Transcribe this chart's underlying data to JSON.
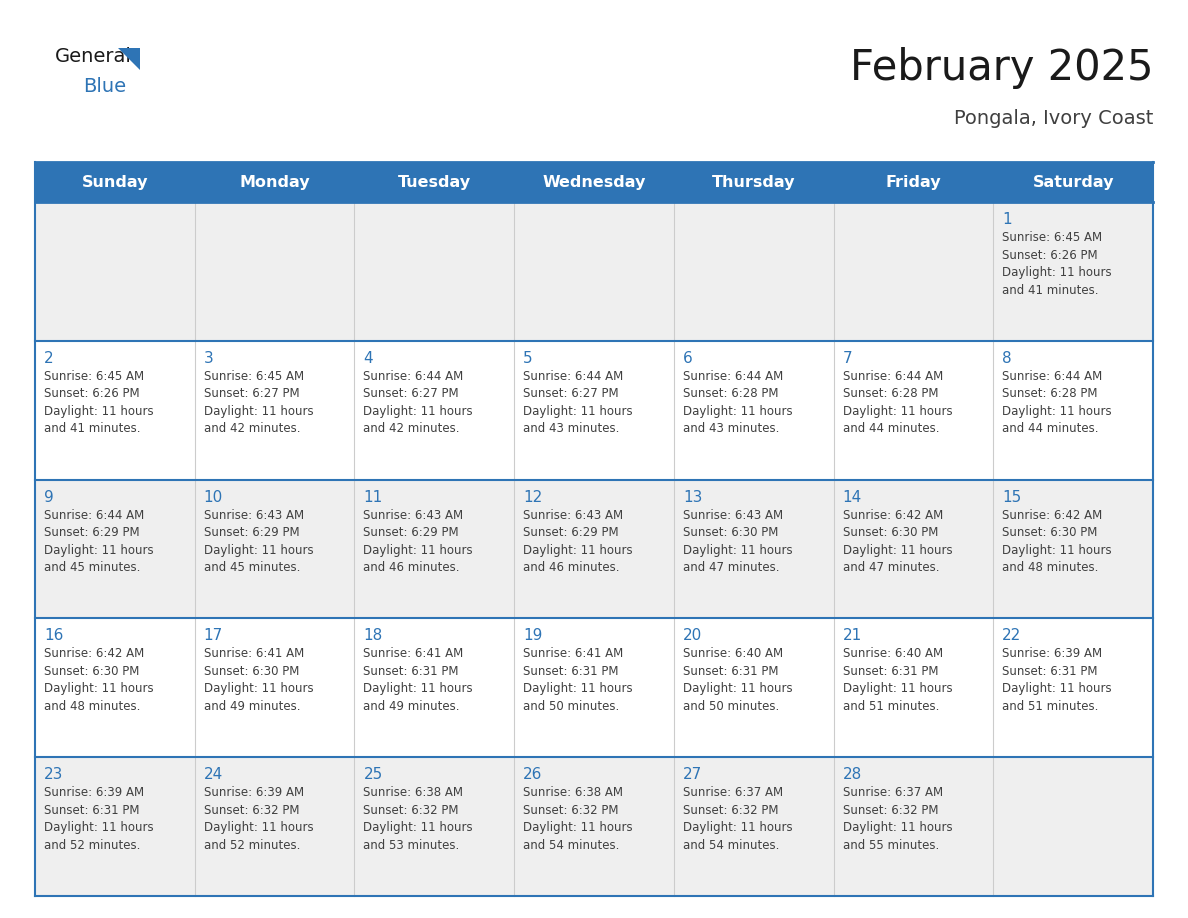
{
  "title": "February 2025",
  "subtitle": "Pongala, Ivory Coast",
  "days_of_week": [
    "Sunday",
    "Monday",
    "Tuesday",
    "Wednesday",
    "Thursday",
    "Friday",
    "Saturday"
  ],
  "header_bg": "#2E74B5",
  "header_text_color": "#FFFFFF",
  "cell_bg_white": "#FFFFFF",
  "cell_bg_gray": "#EFEFEF",
  "grid_line_color": "#2E74B5",
  "day_number_color": "#2E74B5",
  "info_text_color": "#404040",
  "title_color": "#1A1A1A",
  "subtitle_color": "#404040",
  "logo_general_color": "#1A1A1A",
  "logo_blue_color": "#2E74B5",
  "calendar_data": [
    {
      "day": 1,
      "col": 6,
      "row": 0,
      "sunrise": "6:45 AM",
      "sunset": "6:26 PM",
      "daylight_h": "11 hours",
      "daylight_m": "41 minutes."
    },
    {
      "day": 2,
      "col": 0,
      "row": 1,
      "sunrise": "6:45 AM",
      "sunset": "6:26 PM",
      "daylight_h": "11 hours",
      "daylight_m": "41 minutes."
    },
    {
      "day": 3,
      "col": 1,
      "row": 1,
      "sunrise": "6:45 AM",
      "sunset": "6:27 PM",
      "daylight_h": "11 hours",
      "daylight_m": "42 minutes."
    },
    {
      "day": 4,
      "col": 2,
      "row": 1,
      "sunrise": "6:44 AM",
      "sunset": "6:27 PM",
      "daylight_h": "11 hours",
      "daylight_m": "42 minutes."
    },
    {
      "day": 5,
      "col": 3,
      "row": 1,
      "sunrise": "6:44 AM",
      "sunset": "6:27 PM",
      "daylight_h": "11 hours",
      "daylight_m": "43 minutes."
    },
    {
      "day": 6,
      "col": 4,
      "row": 1,
      "sunrise": "6:44 AM",
      "sunset": "6:28 PM",
      "daylight_h": "11 hours",
      "daylight_m": "43 minutes."
    },
    {
      "day": 7,
      "col": 5,
      "row": 1,
      "sunrise": "6:44 AM",
      "sunset": "6:28 PM",
      "daylight_h": "11 hours",
      "daylight_m": "44 minutes."
    },
    {
      "day": 8,
      "col": 6,
      "row": 1,
      "sunrise": "6:44 AM",
      "sunset": "6:28 PM",
      "daylight_h": "11 hours",
      "daylight_m": "44 minutes."
    },
    {
      "day": 9,
      "col": 0,
      "row": 2,
      "sunrise": "6:44 AM",
      "sunset": "6:29 PM",
      "daylight_h": "11 hours",
      "daylight_m": "45 minutes."
    },
    {
      "day": 10,
      "col": 1,
      "row": 2,
      "sunrise": "6:43 AM",
      "sunset": "6:29 PM",
      "daylight_h": "11 hours",
      "daylight_m": "45 minutes."
    },
    {
      "day": 11,
      "col": 2,
      "row": 2,
      "sunrise": "6:43 AM",
      "sunset": "6:29 PM",
      "daylight_h": "11 hours",
      "daylight_m": "46 minutes."
    },
    {
      "day": 12,
      "col": 3,
      "row": 2,
      "sunrise": "6:43 AM",
      "sunset": "6:29 PM",
      "daylight_h": "11 hours",
      "daylight_m": "46 minutes."
    },
    {
      "day": 13,
      "col": 4,
      "row": 2,
      "sunrise": "6:43 AM",
      "sunset": "6:30 PM",
      "daylight_h": "11 hours",
      "daylight_m": "47 minutes."
    },
    {
      "day": 14,
      "col": 5,
      "row": 2,
      "sunrise": "6:42 AM",
      "sunset": "6:30 PM",
      "daylight_h": "11 hours",
      "daylight_m": "47 minutes."
    },
    {
      "day": 15,
      "col": 6,
      "row": 2,
      "sunrise": "6:42 AM",
      "sunset": "6:30 PM",
      "daylight_h": "11 hours",
      "daylight_m": "48 minutes."
    },
    {
      "day": 16,
      "col": 0,
      "row": 3,
      "sunrise": "6:42 AM",
      "sunset": "6:30 PM",
      "daylight_h": "11 hours",
      "daylight_m": "48 minutes."
    },
    {
      "day": 17,
      "col": 1,
      "row": 3,
      "sunrise": "6:41 AM",
      "sunset": "6:30 PM",
      "daylight_h": "11 hours",
      "daylight_m": "49 minutes."
    },
    {
      "day": 18,
      "col": 2,
      "row": 3,
      "sunrise": "6:41 AM",
      "sunset": "6:31 PM",
      "daylight_h": "11 hours",
      "daylight_m": "49 minutes."
    },
    {
      "day": 19,
      "col": 3,
      "row": 3,
      "sunrise": "6:41 AM",
      "sunset": "6:31 PM",
      "daylight_h": "11 hours",
      "daylight_m": "50 minutes."
    },
    {
      "day": 20,
      "col": 4,
      "row": 3,
      "sunrise": "6:40 AM",
      "sunset": "6:31 PM",
      "daylight_h": "11 hours",
      "daylight_m": "50 minutes."
    },
    {
      "day": 21,
      "col": 5,
      "row": 3,
      "sunrise": "6:40 AM",
      "sunset": "6:31 PM",
      "daylight_h": "11 hours",
      "daylight_m": "51 minutes."
    },
    {
      "day": 22,
      "col": 6,
      "row": 3,
      "sunrise": "6:39 AM",
      "sunset": "6:31 PM",
      "daylight_h": "11 hours",
      "daylight_m": "51 minutes."
    },
    {
      "day": 23,
      "col": 0,
      "row": 4,
      "sunrise": "6:39 AM",
      "sunset": "6:31 PM",
      "daylight_h": "11 hours",
      "daylight_m": "52 minutes."
    },
    {
      "day": 24,
      "col": 1,
      "row": 4,
      "sunrise": "6:39 AM",
      "sunset": "6:32 PM",
      "daylight_h": "11 hours",
      "daylight_m": "52 minutes."
    },
    {
      "day": 25,
      "col": 2,
      "row": 4,
      "sunrise": "6:38 AM",
      "sunset": "6:32 PM",
      "daylight_h": "11 hours",
      "daylight_m": "53 minutes."
    },
    {
      "day": 26,
      "col": 3,
      "row": 4,
      "sunrise": "6:38 AM",
      "sunset": "6:32 PM",
      "daylight_h": "11 hours",
      "daylight_m": "54 minutes."
    },
    {
      "day": 27,
      "col": 4,
      "row": 4,
      "sunrise": "6:37 AM",
      "sunset": "6:32 PM",
      "daylight_h": "11 hours",
      "daylight_m": "54 minutes."
    },
    {
      "day": 28,
      "col": 5,
      "row": 4,
      "sunrise": "6:37 AM",
      "sunset": "6:32 PM",
      "daylight_h": "11 hours",
      "daylight_m": "55 minutes."
    }
  ]
}
